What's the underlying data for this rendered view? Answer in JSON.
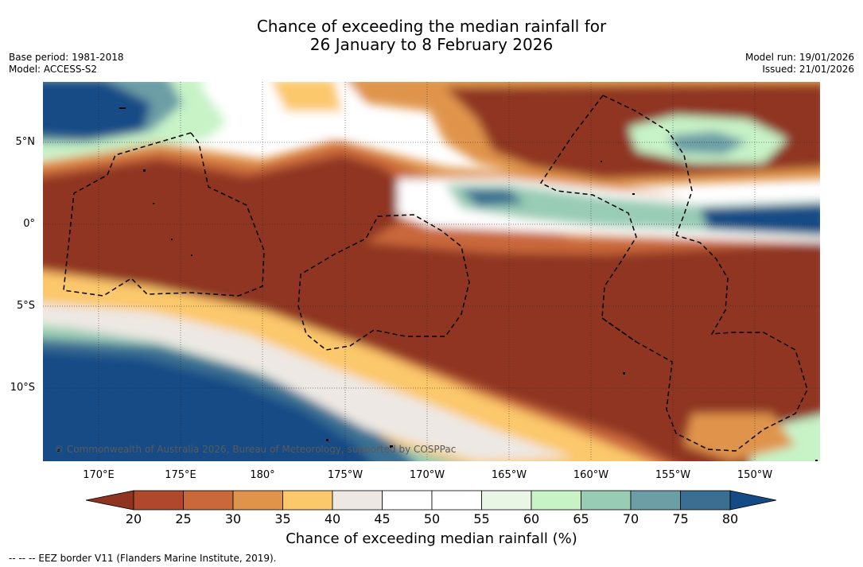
{
  "header": {
    "title_line1": "Chance of exceeding the median rainfall for",
    "title_line2": "26 January to 8 February 2026",
    "base_period": "Base period: 1981-2018",
    "model": "Model: ACCESS-S2",
    "model_run": "Model run: 19/01/2026",
    "issued": "Issued: 21/01/2026"
  },
  "map": {
    "lat_labels": [
      "5°N",
      "0°",
      "5°S",
      "10°S"
    ],
    "lon_labels": [
      "170°E",
      "175°E",
      "180°",
      "175°W",
      "170°W",
      "165°W",
      "160°W",
      "155°W",
      "150°W"
    ],
    "copyright": "© Commonwealth of Australia 2026, Bureau of Meteorology, supported by COSPPac"
  },
  "colorbar": {
    "ticks": [
      "20",
      "25",
      "30",
      "35",
      "40",
      "45",
      "50",
      "55",
      "60",
      "65",
      "70",
      "75",
      "80"
    ],
    "colors": [
      "#8f3421",
      "#b0492b",
      "#c9683a",
      "#e0944b",
      "#fcc86c",
      "#ede8e3",
      "#ffffff",
      "#ffffff",
      "#e9f6e6",
      "#c7f3c7",
      "#99ccb5",
      "#6c9ea5",
      "#3b6f92",
      "#144b86"
    ],
    "label": "Chance of exceeding median rainfall (%)"
  },
  "legend": {
    "eez_note": "--  --  -- EEZ border V11 (Flanders Marine Institute, 2019)."
  }
}
